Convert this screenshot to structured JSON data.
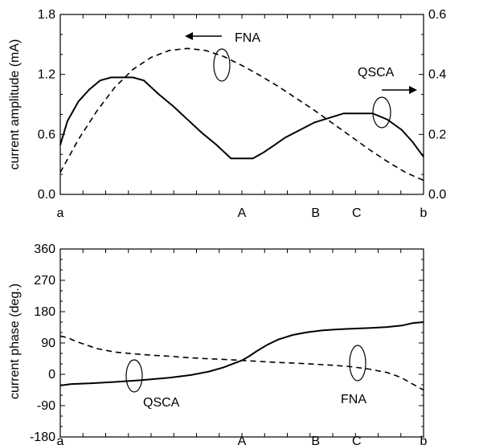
{
  "chart_data": [
    {
      "type": "line",
      "ylabel": "current amplitude (mA)",
      "ylim": [
        0,
        1.8
      ],
      "y_ticks": [
        "0.0",
        "0.6",
        "1.2",
        "1.8"
      ],
      "y2lim": [
        0,
        0.6
      ],
      "y2_ticks": [
        "0.0",
        "0.2",
        "0.4",
        "0.6"
      ],
      "xlim": [
        0,
        1
      ],
      "x_tick_labels": [
        {
          "label": "a",
          "x": 0.0
        },
        {
          "label": "A",
          "x": 0.5
        },
        {
          "label": "B",
          "x": 0.703
        },
        {
          "label": "C",
          "x": 0.816
        },
        {
          "label": "b",
          "x": 1.0
        }
      ],
      "series": [
        {
          "name": "QSCA",
          "style": "solid",
          "axis": "right",
          "x": [
            0,
            0.02,
            0.05,
            0.08,
            0.11,
            0.14,
            0.17,
            0.2,
            0.23,
            0.27,
            0.31,
            0.35,
            0.39,
            0.43,
            0.47,
            0.5,
            0.53,
            0.56,
            0.59,
            0.62,
            0.66,
            0.7,
            0.74,
            0.78,
            0.82,
            0.86,
            0.9,
            0.94,
            0.97,
            1.0
          ],
          "values": [
            0.165,
            0.245,
            0.31,
            0.35,
            0.38,
            0.39,
            0.39,
            0.39,
            0.38,
            0.335,
            0.295,
            0.25,
            0.205,
            0.165,
            0.12,
            0.12,
            0.12,
            0.14,
            0.165,
            0.19,
            0.215,
            0.24,
            0.255,
            0.27,
            0.27,
            0.27,
            0.25,
            0.215,
            0.175,
            0.125
          ]
        },
        {
          "name": "FNA",
          "style": "dashed",
          "axis": "left",
          "x": [
            0,
            0.05,
            0.1,
            0.15,
            0.2,
            0.25,
            0.3,
            0.35,
            0.4,
            0.45,
            0.5,
            0.55,
            0.6,
            0.65,
            0.7,
            0.75,
            0.8,
            0.85,
            0.9,
            0.95,
            1.0
          ],
          "values": [
            0.22,
            0.55,
            0.83,
            1.07,
            1.25,
            1.37,
            1.44,
            1.46,
            1.44,
            1.38,
            1.29,
            1.19,
            1.08,
            0.96,
            0.84,
            0.71,
            0.58,
            0.45,
            0.33,
            0.22,
            0.14
          ]
        }
      ],
      "annotations": [
        {
          "text": "FNA",
          "arrow": "left"
        },
        {
          "text": "QSCA",
          "arrow": "right"
        }
      ]
    },
    {
      "type": "line",
      "ylabel": "current phase (deg.)",
      "ylim": [
        -180,
        360
      ],
      "y_ticks": [
        "-180",
        "-90",
        "0",
        "90",
        "180",
        "270",
        "360"
      ],
      "xlim": [
        0,
        1
      ],
      "x_tick_labels": [
        {
          "label": "a",
          "x": 0.0
        },
        {
          "label": "A",
          "x": 0.5
        },
        {
          "label": "B",
          "x": 0.703
        },
        {
          "label": "C",
          "x": 0.816
        },
        {
          "label": "b",
          "x": 1.0
        }
      ],
      "series": [
        {
          "name": "QSCA",
          "style": "solid",
          "x": [
            0,
            0.03,
            0.08,
            0.15,
            0.22,
            0.3,
            0.36,
            0.41,
            0.45,
            0.48,
            0.5,
            0.52,
            0.54,
            0.57,
            0.6,
            0.64,
            0.68,
            0.72,
            0.76,
            0.8,
            0.85,
            0.9,
            0.94,
            0.97,
            1.0
          ],
          "values": [
            -32,
            -28,
            -26,
            -22,
            -17,
            -10,
            -2,
            8,
            20,
            32,
            40,
            52,
            66,
            85,
            100,
            113,
            121,
            126,
            129,
            131,
            133,
            136,
            140,
            147,
            150
          ]
        },
        {
          "name": "FNA",
          "style": "dashed",
          "x": [
            0,
            0.02,
            0.05,
            0.1,
            0.15,
            0.2,
            0.25,
            0.3,
            0.35,
            0.4,
            0.45,
            0.5,
            0.55,
            0.6,
            0.65,
            0.7,
            0.75,
            0.8,
            0.85,
            0.9,
            0.94,
            0.97,
            1.0
          ],
          "values": [
            110,
            105,
            92,
            74,
            64,
            59,
            55,
            52,
            48,
            45,
            43,
            40,
            37,
            34,
            32,
            29,
            26,
            22,
            15,
            5,
            -10,
            -28,
            -45
          ]
        }
      ],
      "annotations": [
        {
          "text": "QSCA"
        },
        {
          "text": "FNA"
        }
      ]
    }
  ]
}
